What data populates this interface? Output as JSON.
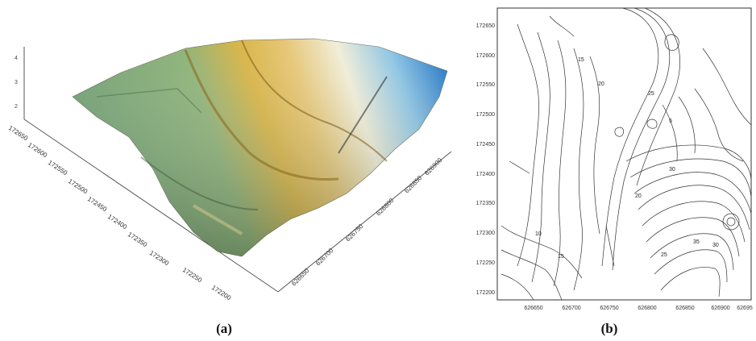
{
  "panel_a": {
    "caption": "(a)",
    "y_ticks": [
      "172650",
      "172600",
      "172550",
      "172500",
      "172450",
      "172400",
      "172350",
      "172300",
      "172250",
      "172200"
    ],
    "x_ticks": [
      "626650",
      "626700",
      "626750",
      "626800",
      "626850",
      "626900"
    ]
  },
  "panel_b": {
    "caption": "(b)",
    "y_ticks": [
      "172650",
      "172600",
      "172550",
      "172500",
      "172450",
      "172400",
      "172350",
      "172300",
      "172250",
      "172200"
    ],
    "x_ticks": [
      "626650",
      "626700",
      "626750",
      "626800",
      "626850",
      "626900",
      "62695"
    ],
    "contour_labels": [
      "15",
      "20",
      "25",
      "30",
      "35",
      "30",
      "25",
      "20",
      "15",
      "10",
      "5"
    ]
  }
}
